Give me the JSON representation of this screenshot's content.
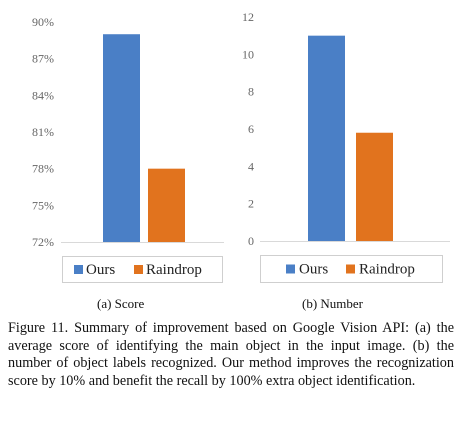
{
  "chart_data": [
    {
      "type": "bar",
      "title": "",
      "xlabel": "",
      "ylabel": "",
      "ylim": [
        72,
        90
      ],
      "ytick_values": [
        72,
        75,
        78,
        81,
        84,
        87,
        90
      ],
      "ytick_labels": [
        "72%",
        "75%",
        "78%",
        "81%",
        "84%",
        "87%",
        "90%"
      ],
      "categories": [
        "Ours",
        "Raindrop"
      ],
      "values": [
        89,
        78
      ],
      "colors": [
        "#4a7fc6",
        "#e1731e"
      ],
      "legend": [
        "Ours",
        "Raindrop"
      ],
      "legend_position": "bottom",
      "grid": false,
      "subcaption": "(a)  Score"
    },
    {
      "type": "bar",
      "title": "",
      "xlabel": "",
      "ylabel": "",
      "ylim": [
        0,
        12
      ],
      "ytick_values": [
        0,
        2,
        4,
        6,
        8,
        10,
        12
      ],
      "ytick_labels": [
        "0",
        "2",
        "4",
        "6",
        "8",
        "10",
        "12"
      ],
      "categories": [
        "Ours",
        "Raindrop"
      ],
      "values": [
        11,
        5.8
      ],
      "colors": [
        "#4a7fc6",
        "#e1731e"
      ],
      "legend": [
        "Ours",
        "Raindrop"
      ],
      "legend_position": "bottom",
      "grid": false,
      "subcaption": "(b)  Number"
    }
  ],
  "caption": "Figure 11. Summary of improvement based on Google Vision API: (a) the average score of identifying the main object in the input image. (b) the number of object labels recognized. Our method improves the recognization score by 10% and benefit the recall by 100% extra object identification."
}
